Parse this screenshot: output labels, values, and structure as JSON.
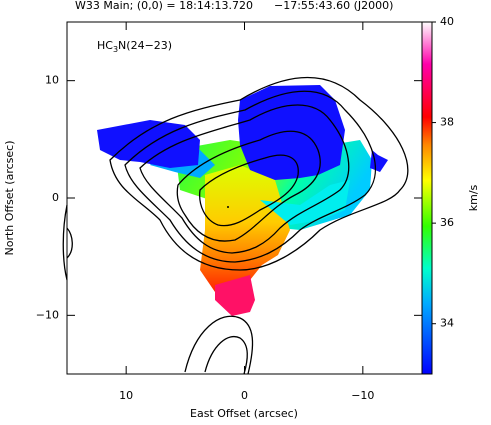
{
  "chart_data": {
    "type": "image",
    "title": "W33 Main; (0,0) = 18:14:13.720      −17:55:43.60 (J2000)",
    "label": {
      "prefix": "HC",
      "sub": "3",
      "suffix": "N(24−23)"
    },
    "x_label": "East Offset (arcsec)",
    "y_label": "North Offset (arcsec)",
    "xlim": [
      15,
      -15
    ],
    "ylim": [
      -15,
      15
    ],
    "xticks": [
      {
        "value": 10,
        "label": "10"
      },
      {
        "value": 0,
        "label": "0"
      },
      {
        "value": -10,
        "label": "−10"
      }
    ],
    "yticks": [
      {
        "value": -10,
        "label": "−10"
      },
      {
        "value": 0,
        "label": "0"
      },
      {
        "value": 10,
        "label": "10"
      }
    ],
    "colorbar": {
      "label": "km/s",
      "lim": [
        33,
        40
      ],
      "ticks": [
        34,
        36,
        38,
        40
      ]
    }
  }
}
